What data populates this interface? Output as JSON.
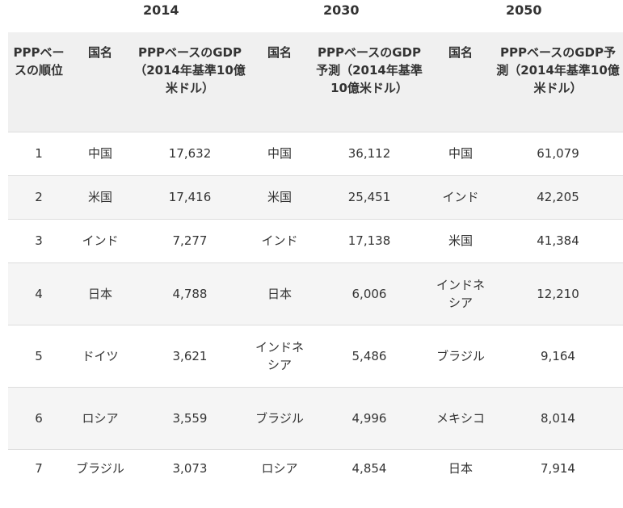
{
  "years": [
    "2014",
    "2030",
    "2050"
  ],
  "headers": {
    "rank": "PPPベースの順位",
    "country": "国名",
    "gdp2014": "PPPベースのGDP（2014年基準10億米ドル）",
    "gdp_forecast": "PPPベースのGDP予測（2014年基準10億米ドル）"
  },
  "rows": [
    {
      "rank": "1",
      "c2014": "中国",
      "v2014": "17,632",
      "c2030": "中国",
      "v2030": "36,112",
      "c2050": "中国",
      "v2050": "61,079"
    },
    {
      "rank": "2",
      "c2014": "米国",
      "v2014": "17,416",
      "c2030": "米国",
      "v2030": "25,451",
      "c2050": "インド",
      "v2050": "42,205"
    },
    {
      "rank": "3",
      "c2014": "インド",
      "v2014": "7,277",
      "c2030": "インド",
      "v2030": "17,138",
      "c2050": "米国",
      "v2050": "41,384"
    },
    {
      "rank": "4",
      "c2014": "日本",
      "v2014": "4,788",
      "c2030": "日本",
      "v2030": "6,006",
      "c2050": "インドネシア",
      "v2050": "12,210"
    },
    {
      "rank": "5",
      "c2014": "ドイツ",
      "v2014": "3,621",
      "c2030": "インドネシア",
      "v2030": "5,486",
      "c2050": "ブラジル",
      "v2050": "9,164"
    },
    {
      "rank": "6",
      "c2014": "ロシア",
      "v2014": "3,559",
      "c2030": "ブラジル",
      "v2030": "4,996",
      "c2050": "メキシコ",
      "v2050": "8,014"
    },
    {
      "rank": "7",
      "c2014": "ブラジル",
      "v2014": "3,073",
      "c2030": "ロシア",
      "v2030": "4,854",
      "c2050": "日本",
      "v2050": "7,914"
    }
  ]
}
